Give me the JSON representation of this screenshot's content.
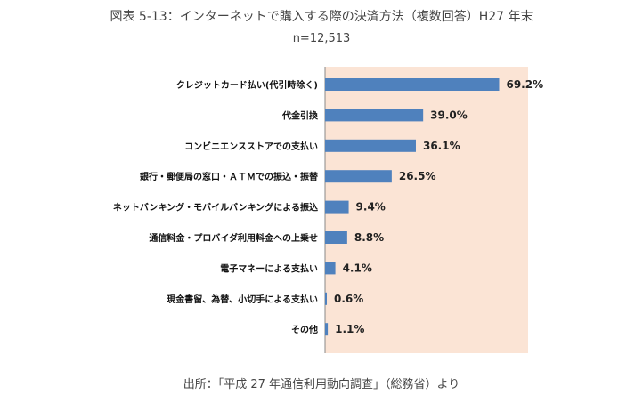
{
  "chart_data": {
    "type": "bar",
    "orientation": "horizontal",
    "title": "図表 5-13：インターネットで購入する際の決済方法（複数回答）H27 年末",
    "subtitle": "n=12,513",
    "categories": [
      "クレジットカード払い(代引時除く)",
      "代金引換",
      "コンビニエンスストアでの支払い",
      "銀行・郵便局の窓口・ＡＴＭでの振込・振替",
      "ネットバンキング・モバイルバンキングによる振込",
      "通信料金・プロバイダ利用料金への上乗せ",
      "電子マネーによる支払い",
      "現金書留、為替、小切手による支払い",
      "その他"
    ],
    "values": [
      69.2,
      39.0,
      36.1,
      26.5,
      9.4,
      8.8,
      4.1,
      0.6,
      1.1
    ],
    "value_labels": [
      "69.2%",
      "39.0%",
      "36.1%",
      "26.5%",
      "9.4%",
      "8.8%",
      "4.1%",
      "0.6%",
      "1.1%"
    ],
    "xlim": [
      0,
      100
    ],
    "unit": "%",
    "bar_color": "#4f81bd",
    "plot_background": "#fbe4d5",
    "grid": false,
    "legend": "none",
    "source": "出所：「平成 27 年通信利用動向調査」（総務省）より"
  }
}
